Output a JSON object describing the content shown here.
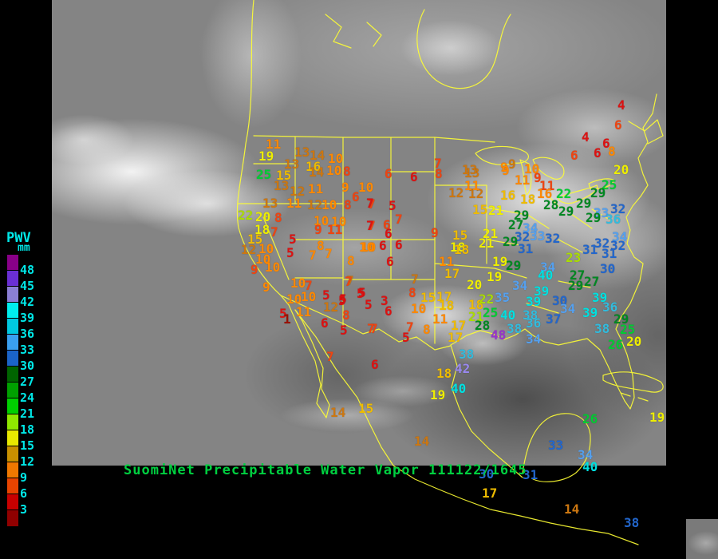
{
  "product": {
    "caption": "SuomiNet Precipitable Water Vapor",
    "timestamp": "111122/1645"
  },
  "legend": {
    "title": "PWV",
    "unit": "mm",
    "labels": [
      "48",
      "45",
      "42",
      "39",
      "36",
      "33",
      "30",
      "27",
      "24",
      "21",
      "18",
      "15",
      "12",
      "9",
      "6",
      "3"
    ],
    "swatches": [
      "#880088",
      "#6a2fd4",
      "#8b7fd4",
      "#00eeee",
      "#00c8e0",
      "#3aa0f0",
      "#1b64c8",
      "#006400",
      "#00a000",
      "#00d000",
      "#90e800",
      "#e8e800",
      "#c89000",
      "#f07800",
      "#e84400",
      "#c80000",
      "#900000"
    ],
    "label_color": "#00e8e8"
  },
  "colors": {
    "outline": "#ffff33",
    "caption_green": "#00d040",
    "palette": {
      "dr": "#991100",
      "r": "#dd1111",
      "or": "#ee4411",
      "o": "#ff8800",
      "d": "#cc7711",
      "g": "#eebb00",
      "y": "#eeee00",
      "yg": "#aadd00",
      "gn": "#00cc33",
      "dg": "#008822",
      "b": "#2266cc",
      "lb": "#55a0ee",
      "sb": "#33bbdd",
      "c": "#00e0e0",
      "v": "#9988ee",
      "p": "#9933cc"
    }
  },
  "stations": [
    [
      11,
      333,
      173,
      "o"
    ],
    [
      19,
      324,
      188,
      "y"
    ],
    [
      13,
      369,
      183,
      "d"
    ],
    [
      14,
      388,
      187,
      "d"
    ],
    [
      10,
      411,
      191,
      "o"
    ],
    [
      13,
      356,
      198,
      "d"
    ],
    [
      16,
      383,
      201,
      "g"
    ],
    [
      25,
      321,
      211,
      "gn"
    ],
    [
      15,
      346,
      212,
      "g"
    ],
    [
      14,
      387,
      208,
      "d"
    ],
    [
      10,
      409,
      206,
      "o"
    ],
    [
      8,
      430,
      207,
      "or"
    ],
    [
      13,
      343,
      225,
      "d"
    ],
    [
      12,
      363,
      232,
      "d"
    ],
    [
      11,
      386,
      229,
      "o"
    ],
    [
      9,
      428,
      227,
      "o"
    ],
    [
      10,
      449,
      227,
      "o"
    ],
    [
      6,
      441,
      239,
      "or"
    ],
    [
      13,
      329,
      247,
      "d"
    ],
    [
      11,
      359,
      247,
      "o"
    ],
    [
      12,
      385,
      249,
      "d"
    ],
    [
      10,
      403,
      249,
      "o"
    ],
    [
      8,
      431,
      249,
      "or"
    ],
    [
      7,
      461,
      248,
      "or"
    ],
    [
      22,
      298,
      262,
      "yg"
    ],
    [
      20,
      320,
      264,
      "y"
    ],
    [
      8,
      344,
      265,
      "or"
    ],
    [
      18,
      319,
      280,
      "y"
    ],
    [
      10,
      393,
      269,
      "o"
    ],
    [
      10,
      415,
      270,
      "o"
    ],
    [
      7,
      461,
      275,
      "or"
    ],
    [
      7,
      339,
      283,
      "or"
    ],
    [
      15,
      310,
      292,
      "g"
    ],
    [
      12,
      302,
      305,
      "d"
    ],
    [
      10,
      324,
      304,
      "o"
    ],
    [
      5,
      362,
      292,
      "r"
    ],
    [
      9,
      394,
      280,
      "or"
    ],
    [
      11,
      410,
      280,
      "or"
    ],
    [
      5,
      359,
      309,
      "r"
    ],
    [
      8,
      397,
      300,
      "o"
    ],
    [
      7,
      387,
      312,
      "o"
    ],
    [
      7,
      407,
      310,
      "o"
    ],
    [
      10,
      452,
      302,
      "o"
    ],
    [
      10,
      320,
      317,
      "o"
    ],
    [
      8,
      435,
      319,
      "o"
    ],
    [
      9,
      314,
      330,
      "or"
    ],
    [
      10,
      332,
      327,
      "o"
    ],
    [
      9,
      329,
      352,
      "o"
    ],
    [
      10,
      364,
      347,
      "o"
    ],
    [
      7,
      382,
      350,
      "or"
    ],
    [
      7,
      434,
      344,
      "d"
    ],
    [
      10,
      359,
      367,
      "o"
    ],
    [
      10,
      377,
      364,
      "o"
    ],
    [
      5,
      404,
      362,
      "r"
    ],
    [
      5,
      449,
      359,
      "r"
    ],
    [
      5,
      425,
      367,
      "r"
    ],
    [
      12,
      405,
      377,
      "d"
    ],
    [
      5,
      457,
      374,
      "r"
    ],
    [
      5,
      350,
      385,
      "r"
    ],
    [
      11,
      371,
      383,
      "o"
    ],
    [
      8,
      429,
      387,
      "or"
    ],
    [
      6,
      402,
      397,
      "r"
    ],
    [
      1,
      355,
      392,
      "dr"
    ],
    [
      5,
      426,
      406,
      "r"
    ],
    [
      7,
      464,
      404,
      "or"
    ],
    [
      7,
      409,
      439,
      "or"
    ],
    [
      6,
      465,
      449,
      "r"
    ],
    [
      14,
      414,
      509,
      "d"
    ],
    [
      15,
      449,
      504,
      "g"
    ],
    [
      14,
      519,
      545,
      "d"
    ],
    [
      6,
      482,
      210,
      "or"
    ],
    [
      6,
      514,
      214,
      "r"
    ],
    [
      7,
      544,
      197,
      "or"
    ],
    [
      8,
      545,
      210,
      "or"
    ],
    [
      13,
      582,
      209,
      "d"
    ],
    [
      9,
      627,
      202,
      "o"
    ],
    [
      5,
      487,
      250,
      "r"
    ],
    [
      7,
      459,
      247,
      "r"
    ],
    [
      7,
      495,
      267,
      "or"
    ],
    [
      6,
      480,
      274,
      "or"
    ],
    [
      7,
      459,
      275,
      "r"
    ],
    [
      6,
      482,
      285,
      "r"
    ],
    [
      9,
      540,
      284,
      "or"
    ],
    [
      10,
      450,
      302,
      "o"
    ],
    [
      6,
      475,
      300,
      "r"
    ],
    [
      6,
      495,
      299,
      "r"
    ],
    [
      6,
      484,
      320,
      "r"
    ],
    [
      18,
      564,
      302,
      "y"
    ],
    [
      11,
      550,
      320,
      "o"
    ],
    [
      7,
      432,
      345,
      "or"
    ],
    [
      7,
      515,
      342,
      "d"
    ],
    [
      17,
      557,
      335,
      "g"
    ],
    [
      5,
      447,
      360,
      "r"
    ],
    [
      3,
      477,
      369,
      "r"
    ],
    [
      8,
      512,
      359,
      "or"
    ],
    [
      15,
      527,
      365,
      "g"
    ],
    [
      17,
      547,
      364,
      "g"
    ],
    [
      5,
      424,
      369,
      "r"
    ],
    [
      6,
      482,
      382,
      "r"
    ],
    [
      10,
      515,
      379,
      "o"
    ],
    [
      18,
      550,
      375,
      "g"
    ],
    [
      11,
      542,
      392,
      "o"
    ],
    [
      7,
      460,
      404,
      "or"
    ],
    [
      7,
      509,
      402,
      "or"
    ],
    [
      8,
      530,
      405,
      "o"
    ],
    [
      5,
      504,
      415,
      "r"
    ],
    [
      17,
      565,
      400,
      "g"
    ],
    [
      17,
      561,
      415,
      "g"
    ],
    [
      12,
      562,
      234,
      "d"
    ],
    [
      12,
      587,
      235,
      "d"
    ],
    [
      16,
      627,
      237,
      "g"
    ],
    [
      18,
      652,
      242,
      "g"
    ],
    [
      15,
      592,
      255,
      "g"
    ],
    [
      21,
      612,
      256,
      "y"
    ],
    [
      29,
      644,
      262,
      "dg"
    ],
    [
      27,
      637,
      274,
      "dg"
    ],
    [
      34,
      655,
      278,
      "lb"
    ],
    [
      32,
      645,
      289,
      "b"
    ],
    [
      33,
      664,
      288,
      "lb"
    ],
    [
      32,
      683,
      291,
      "b"
    ],
    [
      31,
      649,
      304,
      "b"
    ],
    [
      15,
      567,
      287,
      "g"
    ],
    [
      21,
      605,
      285,
      "y"
    ],
    [
      21,
      600,
      297,
      "y"
    ],
    [
      29,
      630,
      295,
      "dg"
    ],
    [
      18,
      569,
      305,
      "g"
    ],
    [
      19,
      617,
      320,
      "y"
    ],
    [
      29,
      634,
      325,
      "dg"
    ],
    [
      11,
      582,
      225,
      "o"
    ],
    [
      13,
      579,
      205,
      "d"
    ],
    [
      9,
      637,
      198,
      "d"
    ],
    [
      9,
      629,
      206,
      "o"
    ],
    [
      10,
      657,
      204,
      "o"
    ],
    [
      9,
      669,
      215,
      "or"
    ],
    [
      11,
      645,
      218,
      "o"
    ],
    [
      11,
      676,
      225,
      "or"
    ],
    [
      16,
      673,
      235,
      "o"
    ],
    [
      22,
      697,
      235,
      "gn"
    ],
    [
      6,
      715,
      187,
      "or"
    ],
    [
      4,
      729,
      164,
      "r"
    ],
    [
      6,
      755,
      172,
      "r"
    ],
    [
      6,
      744,
      184,
      "r"
    ],
    [
      8,
      762,
      182,
      "o"
    ],
    [
      4,
      774,
      124,
      "r"
    ],
    [
      6,
      770,
      149,
      "or"
    ],
    [
      20,
      769,
      205,
      "y"
    ],
    [
      25,
      754,
      224,
      "gn"
    ],
    [
      29,
      740,
      234,
      "dg"
    ],
    [
      28,
      681,
      249,
      "dg"
    ],
    [
      29,
      722,
      247,
      "dg"
    ],
    [
      29,
      700,
      257,
      "dg"
    ],
    [
      32,
      765,
      254,
      "b"
    ],
    [
      33,
      744,
      259,
      "lb"
    ],
    [
      36,
      759,
      267,
      "sb"
    ],
    [
      29,
      734,
      265,
      "dg"
    ],
    [
      34,
      767,
      289,
      "lb"
    ],
    [
      32,
      745,
      297,
      "b"
    ],
    [
      32,
      765,
      300,
      "b"
    ],
    [
      31,
      730,
      305,
      "b"
    ],
    [
      31,
      754,
      310,
      "b"
    ],
    [
      23,
      709,
      315,
      "yg"
    ],
    [
      30,
      752,
      329,
      "b"
    ],
    [
      34,
      677,
      327,
      "lb"
    ],
    [
      40,
      674,
      337,
      "c"
    ],
    [
      27,
      714,
      337,
      "dg"
    ],
    [
      19,
      610,
      339,
      "y"
    ],
    [
      20,
      585,
      349,
      "y"
    ],
    [
      18,
      587,
      374,
      "g"
    ],
    [
      22,
      600,
      367,
      "yg"
    ],
    [
      35,
      620,
      365,
      "lb"
    ],
    [
      34,
      642,
      350,
      "lb"
    ],
    [
      39,
      669,
      357,
      "c"
    ],
    [
      39,
      659,
      370,
      "c"
    ],
    [
      30,
      692,
      369,
      "b"
    ],
    [
      29,
      712,
      350,
      "dg"
    ],
    [
      27,
      732,
      345,
      "dg"
    ],
    [
      25,
      605,
      384,
      "gn"
    ],
    [
      21,
      587,
      389,
      "yg"
    ],
    [
      28,
      595,
      400,
      "dg"
    ],
    [
      40,
      627,
      387,
      "c"
    ],
    [
      38,
      655,
      387,
      "sb"
    ],
    [
      36,
      659,
      397,
      "sb"
    ],
    [
      38,
      635,
      404,
      "sb"
    ],
    [
      34,
      702,
      379,
      "lb"
    ],
    [
      37,
      684,
      392,
      "b"
    ],
    [
      39,
      742,
      365,
      "c"
    ],
    [
      36,
      755,
      377,
      "sb"
    ],
    [
      39,
      730,
      384,
      "c"
    ],
    [
      29,
      769,
      392,
      "dg"
    ],
    [
      38,
      745,
      404,
      "sb"
    ],
    [
      25,
      777,
      405,
      "gn"
    ],
    [
      26,
      762,
      424,
      "gn"
    ],
    [
      20,
      785,
      420,
      "y"
    ],
    [
      48,
      615,
      412,
      "p"
    ],
    [
      34,
      659,
      417,
      "lb"
    ],
    [
      38,
      575,
      436,
      "sb"
    ],
    [
      42,
      570,
      454,
      "v"
    ],
    [
      18,
      547,
      460,
      "g"
    ],
    [
      40,
      565,
      479,
      "c"
    ],
    [
      19,
      539,
      487,
      "y"
    ],
    [
      26,
      730,
      517,
      "gn"
    ],
    [
      19,
      814,
      515,
      "y"
    ],
    [
      33,
      687,
      550,
      "b"
    ],
    [
      34,
      724,
      562,
      "lb"
    ],
    [
      40,
      730,
      577,
      "c"
    ],
    [
      31,
      655,
      587,
      "b"
    ],
    [
      30,
      600,
      586,
      "b"
    ],
    [
      17,
      604,
      610,
      "g"
    ],
    [
      14,
      707,
      630,
      "d"
    ],
    [
      38,
      782,
      647,
      "b"
    ]
  ]
}
